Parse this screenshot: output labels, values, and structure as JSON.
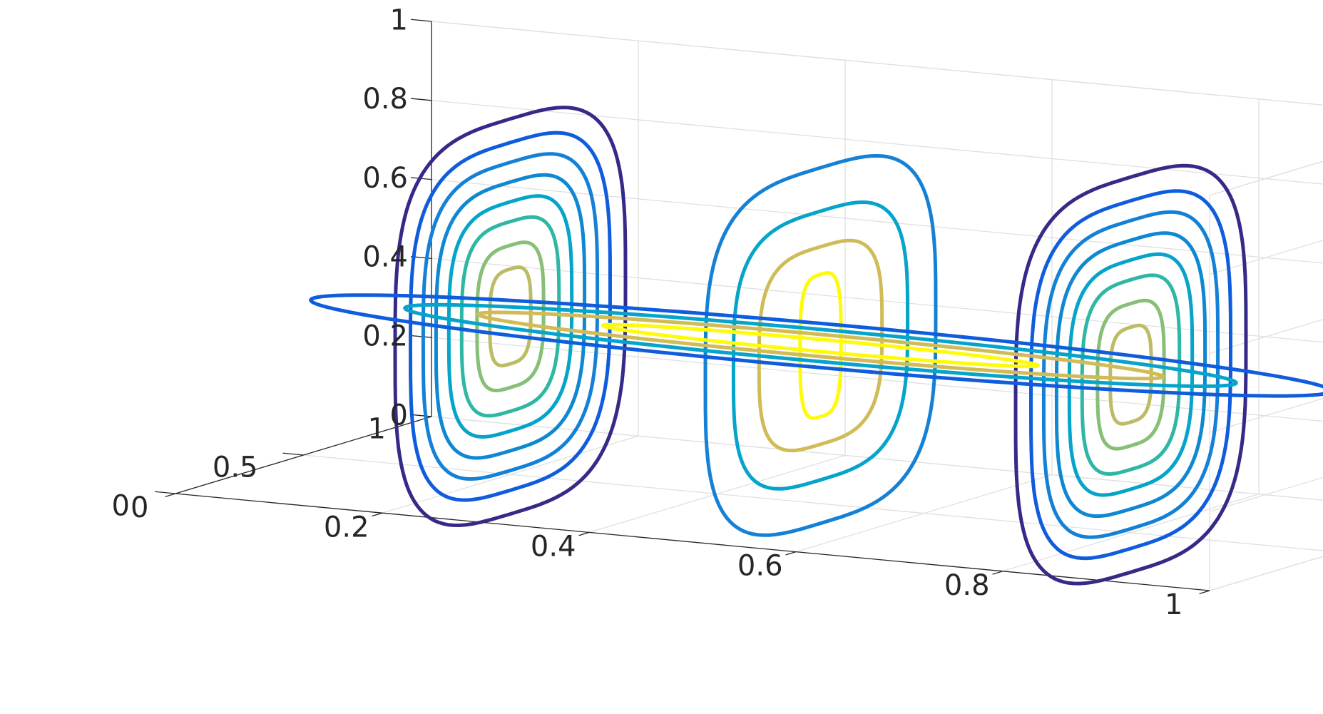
{
  "chart_data": {
    "type": "contour3d",
    "title": "",
    "xlabel": "",
    "ylabel": "",
    "zlabel": "",
    "xlim": [
      0,
      1
    ],
    "ylim": [
      0,
      1
    ],
    "zlim": [
      0,
      1
    ],
    "grid": true,
    "box": true,
    "x_ticks": [
      "0",
      "0.2",
      "0.4",
      "0.6",
      "0.8",
      "1"
    ],
    "y_ticks": [
      "0",
      "0.5",
      "1"
    ],
    "z_ticks": [
      "0",
      "0.2",
      "0.4",
      "0.6",
      "0.8",
      "1"
    ],
    "colormap": [
      "#352a87",
      "#0f5cdd",
      "#1481d6",
      "#06a4ca",
      "#2eb7a4",
      "#87bf77",
      "#d1bb59",
      "#fefb0a"
    ],
    "slices": [
      {
        "plane": "x",
        "position": 0.2,
        "center": {
          "y": 0.5,
          "z": 0.4
        },
        "levels": [
          {
            "ry": 0.45,
            "rz": 0.5,
            "color": "#352a87"
          },
          {
            "ry": 0.39,
            "rz": 0.44,
            "color": "#0f5cdd"
          },
          {
            "ry": 0.34,
            "rz": 0.39,
            "color": "#1481d6"
          },
          {
            "ry": 0.29,
            "rz": 0.34,
            "color": "#0f88d2"
          },
          {
            "ry": 0.24,
            "rz": 0.29,
            "color": "#06a4ca"
          },
          {
            "ry": 0.19,
            "rz": 0.24,
            "color": "#2eb7a4"
          },
          {
            "ry": 0.13,
            "rz": 0.18,
            "color": "#87bf77"
          },
          {
            "ry": 0.08,
            "rz": 0.12,
            "color": "#bcbc66"
          }
        ]
      },
      {
        "plane": "x",
        "position": 0.5,
        "center": {
          "y": 0.5,
          "z": 0.4
        },
        "levels": [
          {
            "ry": 0.45,
            "rz": 0.45,
            "color": "#1481d6"
          },
          {
            "ry": 0.34,
            "rz": 0.34,
            "color": "#06a4ca"
          },
          {
            "ry": 0.24,
            "rz": 0.25,
            "color": "#d1bb59"
          },
          {
            "ry": 0.08,
            "rz": 0.18,
            "color": "#fefb0a"
          }
        ]
      },
      {
        "plane": "x",
        "position": 0.8,
        "center": {
          "y": 0.5,
          "z": 0.4
        },
        "levels": [
          {
            "ry": 0.45,
            "rz": 0.5,
            "color": "#352a87"
          },
          {
            "ry": 0.39,
            "rz": 0.44,
            "color": "#0f5cdd"
          },
          {
            "ry": 0.34,
            "rz": 0.39,
            "color": "#1481d6"
          },
          {
            "ry": 0.29,
            "rz": 0.34,
            "color": "#0f88d2"
          },
          {
            "ry": 0.24,
            "rz": 0.29,
            "color": "#06a4ca"
          },
          {
            "ry": 0.19,
            "rz": 0.24,
            "color": "#2eb7a4"
          },
          {
            "ry": 0.13,
            "rz": 0.18,
            "color": "#87bf77"
          },
          {
            "ry": 0.08,
            "rz": 0.12,
            "color": "#bcbc66"
          }
        ]
      },
      {
        "plane": "z",
        "position": 0.4,
        "center": {
          "x": 0.5,
          "y": 0.5
        },
        "levels": [
          {
            "rx": 0.49,
            "ry": 0.22,
            "color": "#0f5cdd"
          },
          {
            "rx": 0.4,
            "ry": 0.16,
            "color": "#06a4ca"
          },
          {
            "rx": 0.33,
            "ry": 0.11,
            "color": "#d1bb59"
          },
          {
            "rx": 0.21,
            "ry": 0.06,
            "color": "#fefb0a"
          }
        ]
      }
    ]
  }
}
